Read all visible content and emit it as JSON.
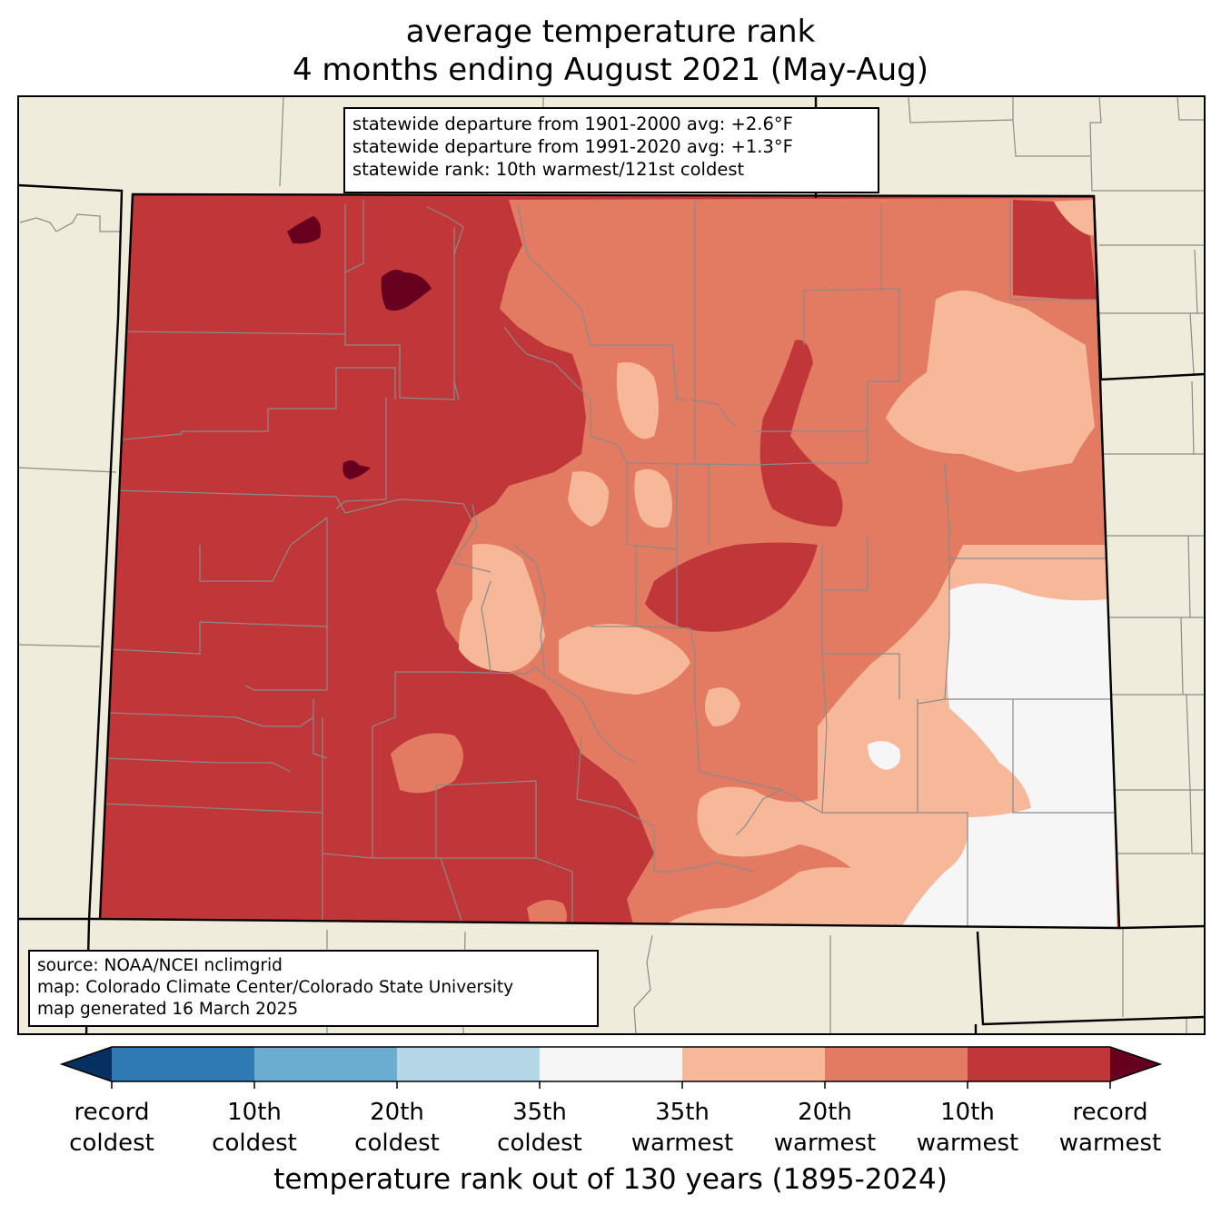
{
  "title": {
    "line1": "average temperature rank",
    "line2": "4 months ending August 2021 (May-Aug)"
  },
  "stats": {
    "line1": "statewide departure from 1901-2000 avg: +2.6°F",
    "line2": "statewide departure from 1991-2020 avg: +1.3°F",
    "line3": "statewide rank: 10th warmest/121st coldest"
  },
  "source": {
    "line1": "source: NOAA/NCEI nclimgrid",
    "line2": "map: Colorado Climate Center/Colorado State University",
    "line3": "map generated 16 March 2025"
  },
  "colorbar": {
    "title": "temperature rank out of 130 years (1895-2024)",
    "colors": [
      "#053061",
      "#2f79b5",
      "#6bacd1",
      "#b5d7e8",
      "#f6f6f6",
      "#f7b799",
      "#e27b62",
      "#c13639",
      "#67001f"
    ],
    "labels": [
      {
        "l1": "record",
        "l2": "coldest"
      },
      {
        "l1": "10th",
        "l2": "coldest"
      },
      {
        "l1": "20th",
        "l2": "coldest"
      },
      {
        "l1": "35th",
        "l2": "coldest"
      },
      {
        "l1": "35th",
        "l2": "warmest"
      },
      {
        "l1": "20th",
        "l2": "warmest"
      },
      {
        "l1": "10th",
        "l2": "warmest"
      },
      {
        "l1": "record",
        "l2": "warmest"
      }
    ]
  },
  "map_colors": {
    "land": "#efecdb",
    "record_warmest": "#67001f",
    "top10_warm": "#c13639",
    "top20_warm": "#e27b62",
    "top35_warm": "#f7b799",
    "near_normal": "#f6f6f6",
    "county_lines": "#8a8a8a"
  }
}
